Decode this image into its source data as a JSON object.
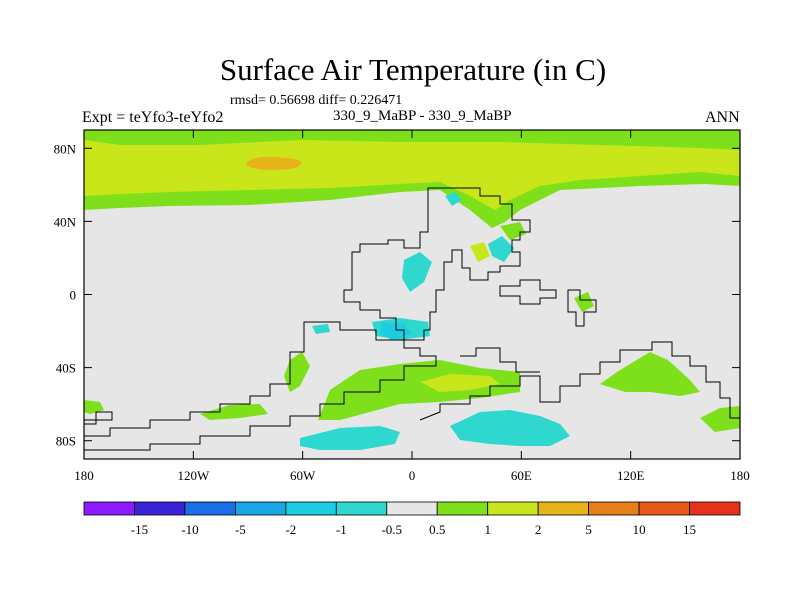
{
  "chart_data": {
    "type": "filled-contour-map",
    "title": "Surface Air Temperature (in C)",
    "stats_label": "rmsd= 0.56698 diff= 0.226471",
    "rmsd": 0.56698,
    "diff": 0.226471,
    "experiment_label": "Expt = teYfo3-teYfo2",
    "case_label": "330_9_MaBP - 330_9_MaBP",
    "season": "ANN",
    "xlim": [
      -180,
      180
    ],
    "ylim": [
      -90,
      90
    ],
    "x_ticks": [
      {
        "value": -180,
        "label": "180"
      },
      {
        "value": -120,
        "label": "120W"
      },
      {
        "value": -60,
        "label": "60W"
      },
      {
        "value": 0,
        "label": "0"
      },
      {
        "value": 60,
        "label": "60E"
      },
      {
        "value": 120,
        "label": "120E"
      },
      {
        "value": 180,
        "label": "180"
      }
    ],
    "y_ticks": [
      {
        "value": 80,
        "label": "80N"
      },
      {
        "value": 40,
        "label": "40N"
      },
      {
        "value": 0,
        "label": "0"
      },
      {
        "value": -40,
        "label": "40S"
      },
      {
        "value": -80,
        "label": "80S"
      }
    ],
    "colorbar": {
      "labels": [
        "-15",
        "-10",
        "-5",
        "-2",
        "-1",
        "-0.5",
        "0.5",
        "1",
        "2",
        "5",
        "10",
        "15"
      ],
      "colors": [
        "#8c1aff",
        "#3a22d6",
        "#1a6ee6",
        "#1aa6e6",
        "#1acde0",
        "#2ed8cf",
        "#e6e6e6",
        "#7ee01a",
        "#c8e61a",
        "#e6b41a",
        "#e6801a",
        "#e65a1a",
        "#e6321a"
      ]
    },
    "regions": [
      {
        "name": "arctic-warming-band",
        "value_range": "1 to 2",
        "lon": [
          -180,
          180
        ],
        "lat": [
          52,
          90
        ]
      },
      {
        "name": "arctic-warm-core",
        "value_range": "5 to 10",
        "lon": [
          -92,
          -58
        ],
        "lat": [
          68,
          74
        ]
      },
      {
        "name": "southern-ocean-cooling",
        "value_range": "-1 to -0.5",
        "lon": [
          -60,
          90
        ],
        "lat": [
          -88,
          -65
        ]
      },
      {
        "name": "southern-midlatitude-warming",
        "value_range": "1 to 2",
        "lon": [
          -30,
          180
        ],
        "lat": [
          -60,
          -40
        ]
      }
    ]
  }
}
